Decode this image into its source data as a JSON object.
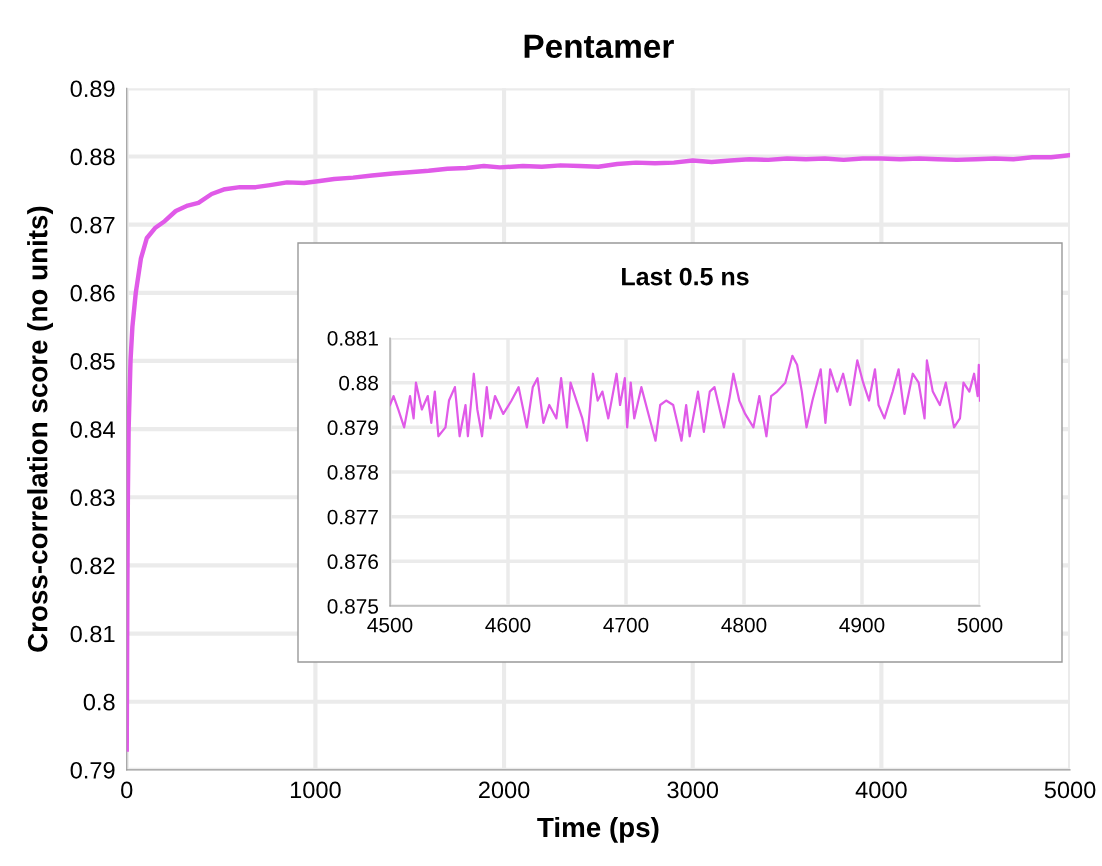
{
  "chart_data": [
    {
      "type": "line",
      "title": "Pentamer",
      "xlabel": "Time (ps)",
      "ylabel": "Cross-correlation score (no units)",
      "xlim": [
        0,
        5000
      ],
      "xticks": [
        0,
        1000,
        2000,
        3000,
        4000,
        5000
      ],
      "ylim": [
        0.79,
        0.89
      ],
      "yticks": [
        0.79,
        0.8,
        0.81,
        0.82,
        0.83,
        0.84,
        0.85,
        0.86,
        0.87,
        0.88,
        0.89
      ],
      "grid": true,
      "marker": "none",
      "line_style": "solid",
      "series": [
        {
          "color": "#e05ae8",
          "x": [
            0,
            3,
            6,
            10,
            20,
            30,
            48,
            75,
            106,
            150,
            201,
            260,
            323,
            380,
            450,
            520,
            600,
            684,
            760,
            850,
            940,
            1023,
            1100,
            1200,
            1300,
            1410,
            1500,
            1600,
            1700,
            1800,
            1893,
            1978,
            2100,
            2200,
            2300,
            2400,
            2500,
            2600,
            2700,
            2800,
            2900,
            3000,
            3100,
            3200,
            3300,
            3400,
            3500,
            3600,
            3700,
            3800,
            3900,
            4000,
            4100,
            4200,
            4300,
            4400,
            4500,
            4600,
            4700,
            4800,
            4900,
            5000
          ],
          "values": [
            0.793,
            0.815,
            0.83,
            0.84,
            0.85,
            0.855,
            0.86,
            0.865,
            0.868,
            0.8695,
            0.8705,
            0.872,
            0.8728,
            0.8732,
            0.8745,
            0.8752,
            0.8755,
            0.8755,
            0.8758,
            0.8762,
            0.8761,
            0.8764,
            0.8767,
            0.8769,
            0.8772,
            0.8775,
            0.8777,
            0.8779,
            0.8782,
            0.8783,
            0.8786,
            0.8784,
            0.8786,
            0.8785,
            0.8787,
            0.8786,
            0.8785,
            0.8789,
            0.8791,
            0.879,
            0.8791,
            0.8794,
            0.8792,
            0.8794,
            0.8796,
            0.8795,
            0.8797,
            0.8796,
            0.8797,
            0.8795,
            0.8797,
            0.8797,
            0.8796,
            0.8797,
            0.8796,
            0.8795,
            0.8796,
            0.8797,
            0.8796,
            0.8799,
            0.8799,
            0.8802
          ]
        }
      ]
    },
    {
      "type": "line",
      "title": "Last 0.5 ns",
      "xlim": [
        4500,
        5000
      ],
      "xticks": [
        4500,
        4600,
        4700,
        4800,
        4900,
        5000
      ],
      "ylim": [
        0.875,
        0.881
      ],
      "yticks": [
        0.875,
        0.876,
        0.877,
        0.878,
        0.879,
        0.88,
        0.881
      ],
      "grid": true,
      "marker": "none",
      "line_style": "solid",
      "series": [
        {
          "color": "#e05ae8",
          "x": [
            4500,
            4503,
            4507,
            4512,
            4517,
            4520,
            4522,
            4527,
            4532,
            4535,
            4538,
            4541,
            4547,
            4550,
            4555,
            4559,
            4564,
            4566,
            4571,
            4574,
            4578,
            4582,
            4585,
            4589,
            4596,
            4603,
            4609,
            4616,
            4621,
            4625,
            4630,
            4635,
            4641,
            4645,
            4650,
            4653,
            4658,
            4663,
            4667,
            4672,
            4676,
            4680,
            4685,
            4692,
            4695,
            4699,
            4701,
            4704,
            4707,
            4713,
            4719,
            4725,
            4729,
            4734,
            4740,
            4747,
            4751,
            4754,
            4761,
            4766,
            4771,
            4775,
            4783,
            4788,
            4791,
            4796,
            4801,
            4808,
            4813,
            4819,
            4823,
            4828,
            4835,
            4838,
            4841,
            4845,
            4849,
            4853,
            4858,
            4865,
            4869,
            4873,
            4879,
            4884,
            4890,
            4896,
            4901,
            4906,
            4911,
            4914,
            4919,
            4926,
            4931,
            4936,
            4943,
            4948,
            4953,
            4955,
            4960,
            4966,
            4971,
            4978,
            4983,
            4986,
            4991,
            4995,
            4998,
            4999,
            5000
          ],
          "values": [
            0.8795,
            0.8797,
            0.8794,
            0.879,
            0.8797,
            0.8792,
            0.88,
            0.8794,
            0.8797,
            0.8791,
            0.8798,
            0.8788,
            0.879,
            0.8796,
            0.8799,
            0.8788,
            0.8795,
            0.8788,
            0.8802,
            0.8794,
            0.8788,
            0.8799,
            0.8792,
            0.8797,
            0.8793,
            0.8796,
            0.8799,
            0.879,
            0.8799,
            0.8801,
            0.8791,
            0.8795,
            0.8792,
            0.8801,
            0.879,
            0.88,
            0.8796,
            0.8792,
            0.8787,
            0.8802,
            0.8796,
            0.8798,
            0.8792,
            0.8802,
            0.8795,
            0.8801,
            0.879,
            0.88,
            0.8792,
            0.8799,
            0.8793,
            0.8787,
            0.8795,
            0.8796,
            0.8795,
            0.8787,
            0.8795,
            0.8788,
            0.8798,
            0.8789,
            0.8798,
            0.8799,
            0.879,
            0.8797,
            0.8802,
            0.8796,
            0.8793,
            0.879,
            0.8797,
            0.8788,
            0.8797,
            0.8798,
            0.88,
            0.8803,
            0.8806,
            0.8804,
            0.8798,
            0.879,
            0.8796,
            0.8803,
            0.8791,
            0.8803,
            0.8798,
            0.8802,
            0.8795,
            0.8805,
            0.88,
            0.8796,
            0.8803,
            0.8795,
            0.8792,
            0.8798,
            0.8803,
            0.8793,
            0.8802,
            0.88,
            0.8792,
            0.8805,
            0.8798,
            0.8795,
            0.88,
            0.879,
            0.8792,
            0.88,
            0.8798,
            0.8802,
            0.8797,
            0.8804,
            0.8796
          ]
        }
      ]
    }
  ]
}
